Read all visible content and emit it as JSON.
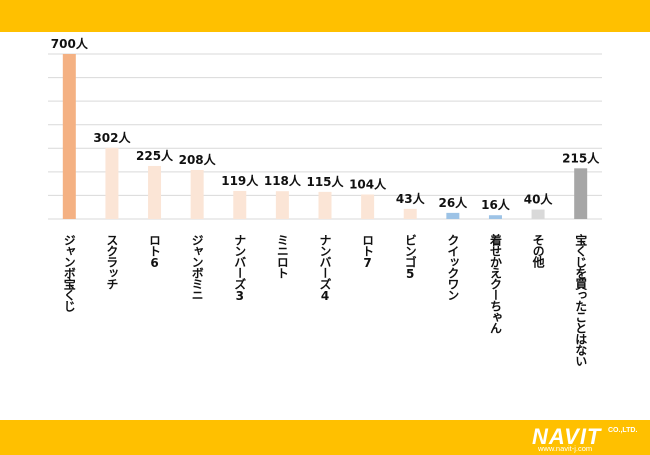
{
  "colors": {
    "band": "#FFC000",
    "grid": "#D9D9D9"
  },
  "chart_data": {
    "type": "bar",
    "title": "",
    "xlabel": "",
    "ylabel": "",
    "ylim": [
      0,
      700
    ],
    "grid": true,
    "legend": "none",
    "categories": [
      "ジャンボ宝くじ",
      "スクラッチ",
      "ロト6",
      "ジャンボミニ",
      "ナンバーズ3",
      "ミニロト",
      "ナンバーズ4",
      "ロト7",
      "ビンゴ5",
      "クイックワン",
      "着せかえクーちゃん",
      "その他",
      "宝くじを買ったことはない"
    ],
    "values": [
      700,
      302,
      225,
      208,
      119,
      118,
      115,
      104,
      43,
      26,
      16,
      40,
      215
    ],
    "data_labels": [
      "700人",
      "302人",
      "225人",
      "208人",
      "119人",
      "118人",
      "115人",
      "104人",
      "43人",
      "26人",
      "16人",
      "40人",
      "215人"
    ],
    "bar_colors": [
      "#F4B183",
      "#FBE5D6",
      "#FBE5D6",
      "#FBE5D6",
      "#FBE5D6",
      "#FBE5D6",
      "#FBE5D6",
      "#FBE5D6",
      "#FBE5D6",
      "#9DC3E6",
      "#9DC3E6",
      "#D9D9D9",
      "#A6A6A6"
    ]
  },
  "logo": {
    "brand": "NAVIT",
    "suffix": "CO.,LTD.",
    "url": "www.navit-j.com"
  }
}
